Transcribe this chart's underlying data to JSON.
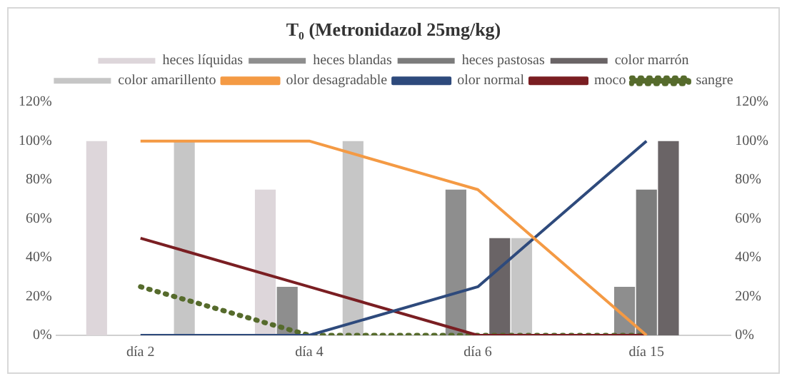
{
  "chart_data": {
    "type": "bar",
    "title": "T₀ (Metronidazol 25mg/kg)",
    "categories": [
      "día 2",
      "día 4",
      "día 6",
      "día 15"
    ],
    "series": [
      {
        "name": "heces líquidas",
        "color": "#ddd6da",
        "values": [
          100,
          75,
          0,
          0
        ]
      },
      {
        "name": "heces blandas",
        "color": "#8e8e8e",
        "values": [
          0,
          25,
          75,
          25
        ]
      },
      {
        "name": "heces pastosas",
        "color": "#7c7c7c",
        "values": [
          0,
          0,
          0,
          75
        ]
      },
      {
        "name": "color marrón",
        "color": "#6a6466",
        "values": [
          0,
          0,
          50,
          100
        ]
      },
      {
        "name": "color amarillento",
        "color": "#c6c6c6",
        "values": [
          100,
          100,
          50,
          0
        ]
      },
      {
        "name": "olor desagradable",
        "type": "line",
        "color": "#f49a44",
        "values": [
          100,
          100,
          75,
          0
        ]
      },
      {
        "name": "olor normal",
        "type": "line",
        "color": "#2e4a7c",
        "values": [
          0,
          0,
          25,
          100
        ]
      },
      {
        "name": "moco",
        "type": "line",
        "color": "#7a1e22",
        "values": [
          50,
          25,
          0,
          0
        ]
      },
      {
        "name": "sangre",
        "type": "line",
        "line_style": "dotted",
        "color": "#566b2c",
        "values": [
          25,
          0,
          0,
          0
        ]
      }
    ],
    "ylim": [
      0,
      120
    ],
    "yticks": [
      {
        "value": 0,
        "label": "0%"
      },
      {
        "value": 20,
        "label": "20%"
      },
      {
        "value": 40,
        "label": "40%"
      },
      {
        "value": 60,
        "label": "60%"
      },
      {
        "value": 80,
        "label": "80%"
      },
      {
        "value": 100,
        "label": "100%"
      },
      {
        "value": 120,
        "label": "120%"
      }
    ],
    "y2lim": [
      0,
      120
    ],
    "y2ticks": [
      {
        "value": 0,
        "label": "0%"
      },
      {
        "value": 20,
        "label": "20%"
      },
      {
        "value": 40,
        "label": "40%"
      },
      {
        "value": 60,
        "label": "60%"
      },
      {
        "value": 80,
        "label": "80%"
      },
      {
        "value": 100,
        "label": "100%"
      },
      {
        "value": 120,
        "label": "120%"
      }
    ],
    "grid": false,
    "legend": "top",
    "marker": "none"
  }
}
